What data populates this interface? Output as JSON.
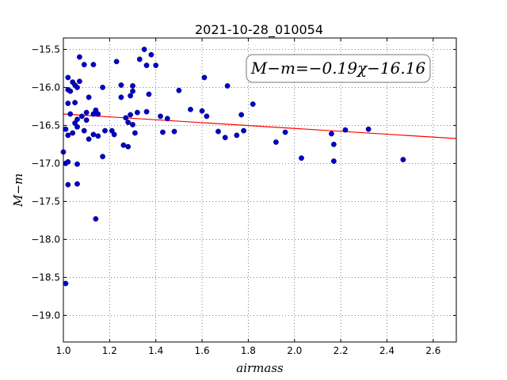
{
  "chart_data": {
    "type": "scatter",
    "title": "2021-10-28_010054",
    "xlabel": "airmass",
    "ylabel": "M−m",
    "xlim": [
      1.0,
      2.7
    ],
    "ylim": [
      -19.35,
      -15.35
    ],
    "y_inverted": true,
    "grid": true,
    "xticks": [
      1.0,
      1.2,
      1.4,
      1.6,
      1.8,
      2.0,
      2.2,
      2.4,
      2.6
    ],
    "xtick_labels": [
      "1.0",
      "1.2",
      "1.4",
      "1.6",
      "1.8",
      "2.0",
      "2.2",
      "2.4",
      "2.6"
    ],
    "yticks": [
      -15.5,
      -16.0,
      -16.5,
      -17.0,
      -17.5,
      -18.0,
      -18.5,
      -19.0
    ],
    "ytick_labels": [
      "−15.5",
      "−16.0",
      "−16.5",
      "−17.0",
      "−17.5",
      "−18.0",
      "−18.5",
      "−19.0"
    ],
    "annotation": "M−m=−0.19χ−16.16",
    "annotation_placement": "top-right",
    "point_color": "#0000cc",
    "line_color": "#ff0000",
    "fit": {
      "slope": -0.19,
      "intercept": -16.16
    },
    "points": [
      [
        1.0,
        -16.85
      ],
      [
        1.01,
        -18.58
      ],
      [
        1.01,
        -16.55
      ],
      [
        1.01,
        -17.0
      ],
      [
        1.02,
        -15.87
      ],
      [
        1.02,
        -16.03
      ],
      [
        1.02,
        -16.21
      ],
      [
        1.02,
        -16.63
      ],
      [
        1.02,
        -16.98
      ],
      [
        1.02,
        -17.28
      ],
      [
        1.03,
        -16.05
      ],
      [
        1.03,
        -16.35
      ],
      [
        1.04,
        -15.93
      ],
      [
        1.04,
        -16.6
      ],
      [
        1.05,
        -15.97
      ],
      [
        1.05,
        -16.2
      ],
      [
        1.05,
        -16.47
      ],
      [
        1.06,
        -16.0
      ],
      [
        1.06,
        -16.42
      ],
      [
        1.06,
        -16.52
      ],
      [
        1.06,
        -17.01
      ],
      [
        1.06,
        -17.27
      ],
      [
        1.07,
        -15.6
      ],
      [
        1.07,
        -15.92
      ],
      [
        1.08,
        -16.38
      ],
      [
        1.09,
        -15.7
      ],
      [
        1.09,
        -16.57
      ],
      [
        1.1,
        -16.33
      ],
      [
        1.1,
        -16.43
      ],
      [
        1.11,
        -16.13
      ],
      [
        1.11,
        -16.68
      ],
      [
        1.13,
        -15.7
      ],
      [
        1.13,
        -16.35
      ],
      [
        1.13,
        -16.62
      ],
      [
        1.14,
        -16.3
      ],
      [
        1.14,
        -17.73
      ],
      [
        1.15,
        -16.35
      ],
      [
        1.15,
        -16.64
      ],
      [
        1.17,
        -16.0
      ],
      [
        1.17,
        -16.91
      ],
      [
        1.18,
        -16.57
      ],
      [
        1.21,
        -16.57
      ],
      [
        1.22,
        -16.62
      ],
      [
        1.23,
        -15.66
      ],
      [
        1.25,
        -15.97
      ],
      [
        1.25,
        -16.13
      ],
      [
        1.26,
        -16.76
      ],
      [
        1.27,
        -16.4
      ],
      [
        1.28,
        -16.46
      ],
      [
        1.28,
        -16.78
      ],
      [
        1.29,
        -16.36
      ],
      [
        1.29,
        -16.11
      ],
      [
        1.3,
        -15.98
      ],
      [
        1.3,
        -16.05
      ],
      [
        1.3,
        -16.49
      ],
      [
        1.31,
        -16.6
      ],
      [
        1.32,
        -16.33
      ],
      [
        1.33,
        -15.63
      ],
      [
        1.35,
        -15.5
      ],
      [
        1.36,
        -15.71
      ],
      [
        1.36,
        -16.32
      ],
      [
        1.37,
        -16.09
      ],
      [
        1.38,
        -15.57
      ],
      [
        1.4,
        -15.71
      ],
      [
        1.42,
        -16.38
      ],
      [
        1.43,
        -16.59
      ],
      [
        1.45,
        -16.41
      ],
      [
        1.48,
        -16.58
      ],
      [
        1.5,
        -16.04
      ],
      [
        1.55,
        -16.29
      ],
      [
        1.6,
        -16.31
      ],
      [
        1.61,
        -15.87
      ],
      [
        1.62,
        -16.38
      ],
      [
        1.67,
        -16.58
      ],
      [
        1.7,
        -16.66
      ],
      [
        1.71,
        -15.98
      ],
      [
        1.75,
        -16.63
      ],
      [
        1.77,
        -16.36
      ],
      [
        1.78,
        -16.57
      ],
      [
        1.82,
        -16.22
      ],
      [
        1.92,
        -16.72
      ],
      [
        1.96,
        -16.59
      ],
      [
        2.03,
        -16.93
      ],
      [
        2.16,
        -16.61
      ],
      [
        2.17,
        -16.75
      ],
      [
        2.17,
        -16.97
      ],
      [
        2.22,
        -16.56
      ],
      [
        2.32,
        -16.55
      ],
      [
        2.47,
        -16.95
      ]
    ]
  }
}
